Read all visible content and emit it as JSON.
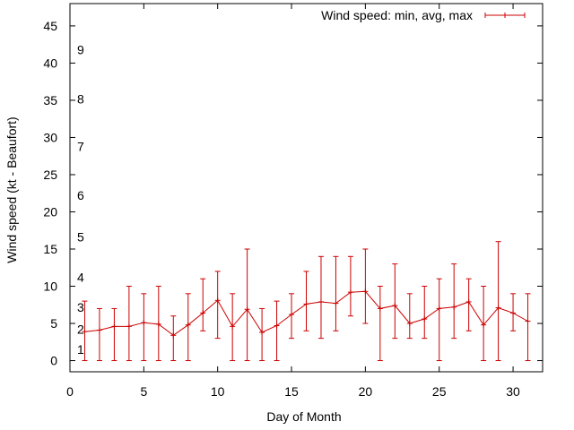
{
  "chart_data": {
    "type": "line",
    "title": "",
    "xlabel": "Day of Month",
    "ylabel": "Wind speed (kt - Beaufort)",
    "xlim": [
      0,
      32
    ],
    "ylim": [
      -1.5,
      48
    ],
    "xticks": [
      0,
      5,
      10,
      15,
      20,
      25,
      30
    ],
    "yticks": [
      0,
      5,
      10,
      15,
      20,
      25,
      30,
      35,
      40,
      45
    ],
    "grid": false,
    "legend": {
      "label": "Wind speed: min, avg, max",
      "position": "top-right"
    },
    "series": [
      {
        "name": "Wind speed: min, avg, max",
        "color": "#cc0000",
        "x": [
          1,
          2,
          3,
          4,
          5,
          6,
          7,
          8,
          9,
          10,
          11,
          12,
          13,
          14,
          15,
          16,
          17,
          18,
          19,
          20,
          21,
          22,
          23,
          24,
          25,
          26,
          27,
          28,
          29,
          30,
          31
        ],
        "avg": [
          3.9,
          4.1,
          4.6,
          4.6,
          5.1,
          4.9,
          3.4,
          4.8,
          6.4,
          8.1,
          4.6,
          6.9,
          3.8,
          4.7,
          6.2,
          7.6,
          7.9,
          7.7,
          9.2,
          9.3,
          7.0,
          7.4,
          5.0,
          5.6,
          7.0,
          7.2,
          7.9,
          4.8,
          7.1,
          6.4,
          5.3
        ],
        "min": [
          0,
          0,
          0,
          0,
          0,
          0,
          0,
          0,
          4,
          3,
          0,
          0,
          0,
          0,
          3,
          4,
          3,
          4,
          6,
          5,
          0,
          3,
          3,
          3,
          0,
          3,
          4,
          0,
          0,
          4,
          0
        ],
        "max": [
          8,
          7,
          7,
          10,
          9,
          10,
          6,
          9,
          11,
          12,
          9,
          15,
          7,
          8,
          9,
          12,
          14,
          14,
          14,
          15,
          10,
          13,
          9,
          10,
          11,
          13,
          11,
          10,
          16,
          9,
          9
        ]
      }
    ],
    "beaufort_scale": [
      {
        "label": "1",
        "kt": 1.5
      },
      {
        "label": "2",
        "kt": 4.2
      },
      {
        "label": "3",
        "kt": 7.2
      },
      {
        "label": "4",
        "kt": 11.2
      },
      {
        "label": "5",
        "kt": 16.6
      },
      {
        "label": "6",
        "kt": 22.2
      },
      {
        "label": "7",
        "kt": 28.8
      },
      {
        "label": "8",
        "kt": 35.2
      },
      {
        "label": "9",
        "kt": 41.8
      }
    ]
  }
}
